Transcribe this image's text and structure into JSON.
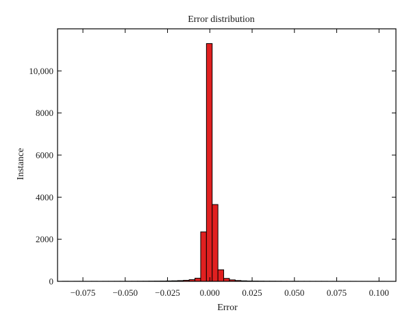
{
  "chart_data": {
    "type": "bar",
    "title": "Error distribution",
    "xlabel": "Error",
    "ylabel": "Instance",
    "xlim": [
      -0.09,
      0.11
    ],
    "ylim": [
      0,
      12000
    ],
    "xticks": [
      -0.075,
      -0.05,
      -0.025,
      0.0,
      0.025,
      0.05,
      0.075,
      0.1
    ],
    "xtick_labels": [
      "−0.075",
      "−0.050",
      "−0.025",
      "0.000",
      "0.025",
      "0.050",
      "0.075",
      "0.100"
    ],
    "yticks": [
      0,
      2000,
      4000,
      6000,
      8000,
      10000
    ],
    "ytick_labels": [
      "0",
      "2000",
      "4000",
      "6000",
      "8000",
      "10,000"
    ],
    "grid": false,
    "bar_color": "#e02020",
    "bin_width": 0.0034,
    "bins": [
      {
        "x": -0.0855,
        "value": 3
      },
      {
        "x": -0.082,
        "value": 2
      },
      {
        "x": -0.0785,
        "value": 3
      },
      {
        "x": -0.0751,
        "value": 2
      },
      {
        "x": -0.0717,
        "value": 2
      },
      {
        "x": -0.0683,
        "value": 3
      },
      {
        "x": -0.0649,
        "value": 2
      },
      {
        "x": -0.0615,
        "value": 3
      },
      {
        "x": -0.0581,
        "value": 3
      },
      {
        "x": -0.0547,
        "value": 4
      },
      {
        "x": -0.0513,
        "value": 4
      },
      {
        "x": -0.0479,
        "value": 5
      },
      {
        "x": -0.0445,
        "value": 6
      },
      {
        "x": -0.0411,
        "value": 7
      },
      {
        "x": -0.0377,
        "value": 8
      },
      {
        "x": -0.0343,
        "value": 10
      },
      {
        "x": -0.0309,
        "value": 12
      },
      {
        "x": -0.0275,
        "value": 15
      },
      {
        "x": -0.0241,
        "value": 20
      },
      {
        "x": -0.0207,
        "value": 25
      },
      {
        "x": -0.0173,
        "value": 35
      },
      {
        "x": -0.0139,
        "value": 50
      },
      {
        "x": -0.0105,
        "value": 80
      },
      {
        "x": -0.0071,
        "value": 150
      },
      {
        "x": -0.0037,
        "value": 2350
      },
      {
        "x": -0.0003,
        "value": 11300
      },
      {
        "x": 0.0031,
        "value": 3650
      },
      {
        "x": 0.0065,
        "value": 550
      },
      {
        "x": 0.0099,
        "value": 140
      },
      {
        "x": 0.0133,
        "value": 70
      },
      {
        "x": 0.0167,
        "value": 40
      },
      {
        "x": 0.0201,
        "value": 25
      },
      {
        "x": 0.0235,
        "value": 18
      },
      {
        "x": 0.0269,
        "value": 14
      },
      {
        "x": 0.0303,
        "value": 11
      },
      {
        "x": 0.0337,
        "value": 9
      },
      {
        "x": 0.0371,
        "value": 8
      },
      {
        "x": 0.0405,
        "value": 7
      },
      {
        "x": 0.0439,
        "value": 6
      },
      {
        "x": 0.0473,
        "value": 5
      },
      {
        "x": 0.0507,
        "value": 5
      },
      {
        "x": 0.0541,
        "value": 4
      },
      {
        "x": 0.0575,
        "value": 4
      },
      {
        "x": 0.0609,
        "value": 3
      },
      {
        "x": 0.0643,
        "value": 3
      },
      {
        "x": 0.0677,
        "value": 3
      },
      {
        "x": 0.0711,
        "value": 2
      },
      {
        "x": 0.0745,
        "value": 2
      },
      {
        "x": 0.0779,
        "value": 2
      },
      {
        "x": 0.0813,
        "value": 2
      },
      {
        "x": 0.0847,
        "value": 2
      },
      {
        "x": 0.0881,
        "value": 1
      },
      {
        "x": 0.0915,
        "value": 1
      },
      {
        "x": 0.0949,
        "value": 1
      },
      {
        "x": 0.0983,
        "value": 1
      },
      {
        "x": 0.1017,
        "value": 1
      }
    ]
  }
}
